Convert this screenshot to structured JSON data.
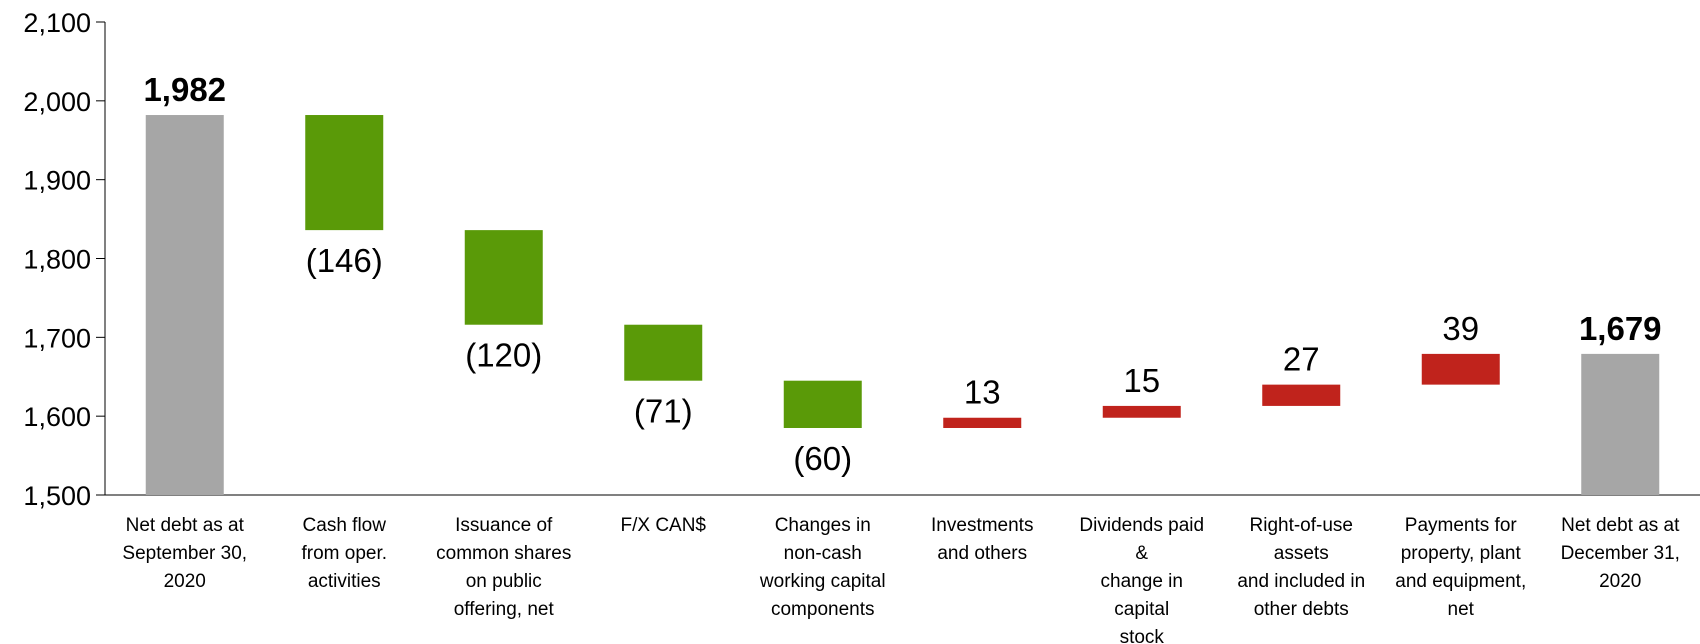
{
  "chart_data": {
    "type": "waterfall",
    "categories": [
      [
        "Net debt as at",
        "September 30,",
        "2020"
      ],
      [
        "Cash flow",
        "from oper.",
        "activities"
      ],
      [
        "Issuance of",
        "common shares",
        "on public",
        "offering, net"
      ],
      [
        "F/X CAN$"
      ],
      [
        "Changes in",
        "non-cash",
        "working capital",
        "components"
      ],
      [
        "Investments",
        "and others"
      ],
      [
        "Dividends paid",
        "&",
        "change in",
        "capital",
        "stock"
      ],
      [
        "Right-of-use",
        "assets",
        "and included in",
        "other debts"
      ],
      [
        "Payments for",
        "property, plant",
        "and equipment,",
        "net"
      ],
      [
        "Net debt as at",
        "December 31,",
        "2020"
      ]
    ],
    "values": [
      1982,
      -146,
      -120,
      -71,
      -60,
      13,
      15,
      27,
      39,
      1679
    ],
    "value_labels": [
      "1,982",
      "(146)",
      "(120)",
      "(71)",
      "(60)",
      "13",
      "15",
      "27",
      "39",
      "1,679"
    ],
    "colors": [
      "#a6a6a6",
      "#5a9a08",
      "#5a9a08",
      "#5a9a08",
      "#5a9a08",
      "#c0231c",
      "#c0231c",
      "#c0231c",
      "#c0231c",
      "#a6a6a6"
    ],
    "ylim": [
      1500,
      2100
    ],
    "yticks": [
      {
        "value": 1500,
        "label": "1,500"
      },
      {
        "value": 1600,
        "label": "1,600"
      },
      {
        "value": 1700,
        "label": "1,700"
      },
      {
        "value": 1800,
        "label": "1,800"
      },
      {
        "value": 1900,
        "label": "1,900"
      },
      {
        "value": 2000,
        "label": "2,000"
      },
      {
        "value": 2100,
        "label": "2,100"
      }
    ]
  }
}
